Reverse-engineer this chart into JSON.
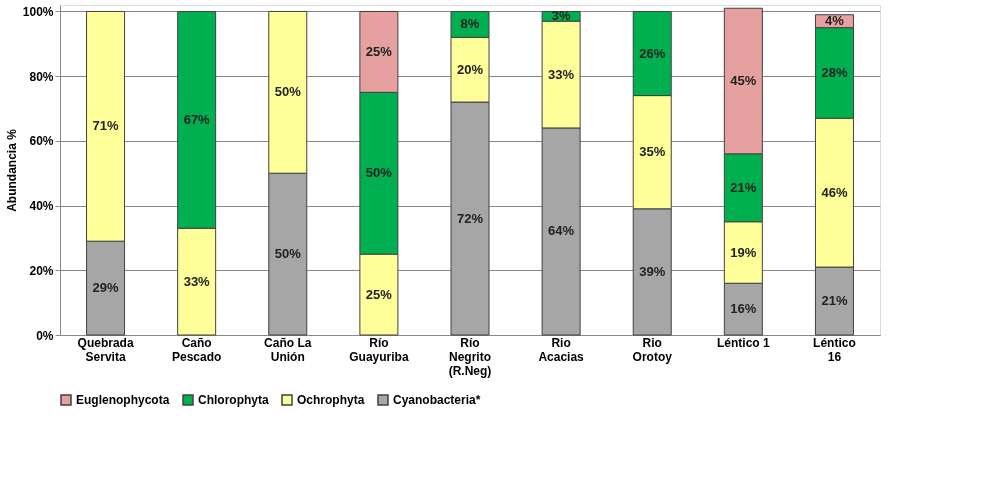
{
  "chart_data": {
    "type": "bar",
    "stacked": true,
    "ylabel": "Abundancia  %",
    "categories": [
      "Quebrada Servita",
      "Caño Pescado",
      "Caño La Unión",
      "Río Guayuriba",
      "Río Negrito (R.Neg)",
      "Rio Acacias",
      "Rio Orotoy",
      "Léntico 1",
      "Léntico 16"
    ],
    "series": [
      {
        "name": "Cyanobacteria*",
        "color": "#a6a6a6",
        "values": [
          29,
          null,
          50,
          null,
          72,
          64,
          39,
          16,
          21
        ],
        "value_labels": [
          "29%",
          null,
          "50%",
          null,
          "72%",
          "64%",
          "39%",
          "16%",
          "21%"
        ]
      },
      {
        "name": "Ochrophyta",
        "color": "#ffff99",
        "values": [
          71,
          33,
          50,
          25,
          20,
          33,
          35,
          19,
          46
        ],
        "value_labels": [
          "71%",
          "33%",
          "50%",
          "25%",
          "20%",
          "33%",
          "35%",
          "19%",
          "46%"
        ]
      },
      {
        "name": "Chlorophyta",
        "color": "#00b050",
        "values": [
          null,
          67,
          null,
          50,
          8,
          3,
          26,
          21,
          28
        ],
        "value_labels": [
          null,
          "67%",
          null,
          "50%",
          "8%",
          "3%",
          "26%",
          "21%",
          "28%"
        ]
      },
      {
        "name": "Euglenophycota",
        "color": "#e6a0a0",
        "values": [
          null,
          null,
          null,
          25,
          null,
          null,
          null,
          45,
          4
        ],
        "value_labels": [
          null,
          null,
          null,
          "25%",
          null,
          null,
          null,
          "45%",
          "4%"
        ]
      }
    ],
    "ylim": [
      0,
      102
    ],
    "yticks": [
      {
        "value": 0,
        "label": "0%"
      },
      {
        "value": 20,
        "label": "20%"
      },
      {
        "value": 40,
        "label": "40%"
      },
      {
        "value": 60,
        "label": "60%"
      },
      {
        "value": 80,
        "label": "80%"
      },
      {
        "value": 100,
        "label": "100%"
      }
    ],
    "grid": "y",
    "legend": "bottom"
  }
}
